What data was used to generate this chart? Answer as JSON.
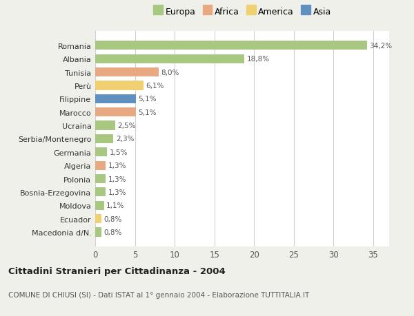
{
  "countries": [
    "Romania",
    "Albania",
    "Tunisia",
    "Perù",
    "Filippine",
    "Marocco",
    "Ucraina",
    "Serbia/Montenegro",
    "Germania",
    "Algeria",
    "Polonia",
    "Bosnia-Erzegovina",
    "Moldova",
    "Ecuador",
    "Macedonia d/N."
  ],
  "values": [
    34.2,
    18.8,
    8.0,
    6.1,
    5.1,
    5.1,
    2.5,
    2.3,
    1.5,
    1.3,
    1.3,
    1.3,
    1.1,
    0.8,
    0.8
  ],
  "labels": [
    "34,2%",
    "18,8%",
    "8,0%",
    "6,1%",
    "5,1%",
    "5,1%",
    "2,5%",
    "2,3%",
    "1,5%",
    "1,3%",
    "1,3%",
    "1,3%",
    "1,1%",
    "0,8%",
    "0,8%"
  ],
  "colors": [
    "#a8c882",
    "#a8c882",
    "#e8a882",
    "#f0d070",
    "#6090c0",
    "#e8a882",
    "#a8c882",
    "#a8c882",
    "#a8c882",
    "#e8a882",
    "#a8c882",
    "#a8c882",
    "#a8c882",
    "#f0d070",
    "#a8c882"
  ],
  "legend_labels": [
    "Europa",
    "Africa",
    "America",
    "Asia"
  ],
  "legend_colors": [
    "#a8c882",
    "#e8a882",
    "#f0d070",
    "#6090c0"
  ],
  "title": "Cittadini Stranieri per Cittadinanza - 2004",
  "subtitle": "COMUNE DI CHIUSI (SI) - Dati ISTAT al 1° gennaio 2004 - Elaborazione TUTTITALIA.IT",
  "xlim": [
    0,
    37
  ],
  "xticks": [
    0,
    5,
    10,
    15,
    20,
    25,
    30,
    35
  ],
  "fig_bg_color": "#f0f0eb",
  "plot_bg_color": "#ffffff",
  "grid_color": "#d0d0d0"
}
